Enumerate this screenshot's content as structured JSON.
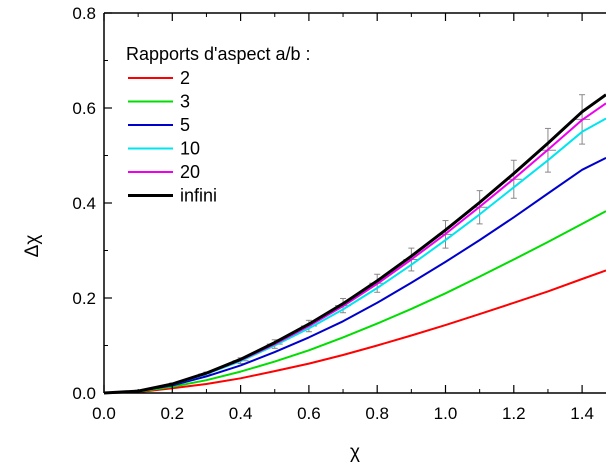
{
  "chart_data": {
    "type": "line",
    "title": "",
    "xlabel": "χ",
    "ylabel": "Δχ",
    "xlim": [
      0,
      1.47
    ],
    "ylim": [
      0,
      0.8
    ],
    "xticks": [
      "0.0",
      "0.2",
      "0.4",
      "0.6",
      "0.8",
      "1.0",
      "1.2",
      "1.4"
    ],
    "yticks": [
      "0.0",
      "0.2",
      "0.4",
      "0.6",
      "0.8"
    ],
    "grid": false,
    "legend": {
      "title": "Rapports d'aspect a/b :",
      "placement": "top-left"
    },
    "series": [
      {
        "name": "2",
        "color": "#ff0000",
        "x": [
          0,
          0.1,
          0.2,
          0.3,
          0.4,
          0.5,
          0.6,
          0.7,
          0.8,
          0.9,
          1.0,
          1.1,
          1.2,
          1.3,
          1.4,
          1.47
        ],
        "values": [
          0,
          0.002,
          0.01,
          0.019,
          0.031,
          0.046,
          0.062,
          0.08,
          0.1,
          0.121,
          0.143,
          0.166,
          0.19,
          0.214,
          0.24,
          0.258
        ]
      },
      {
        "name": "3",
        "color": "#00dd00",
        "x": [
          0,
          0.1,
          0.2,
          0.3,
          0.4,
          0.5,
          0.6,
          0.7,
          0.8,
          0.9,
          1.0,
          1.1,
          1.2,
          1.3,
          1.4,
          1.47
        ],
        "values": [
          0,
          0.003,
          0.013,
          0.027,
          0.045,
          0.066,
          0.09,
          0.117,
          0.146,
          0.177,
          0.21,
          0.245,
          0.281,
          0.318,
          0.356,
          0.383
        ]
      },
      {
        "name": "5",
        "color": "#0000cc",
        "x": [
          0,
          0.1,
          0.2,
          0.3,
          0.4,
          0.5,
          0.6,
          0.7,
          0.8,
          0.9,
          1.0,
          1.1,
          1.2,
          1.3,
          1.4,
          1.47
        ],
        "values": [
          0,
          0.004,
          0.016,
          0.035,
          0.058,
          0.086,
          0.117,
          0.151,
          0.19,
          0.232,
          0.276,
          0.322,
          0.37,
          0.42,
          0.47,
          0.495
        ]
      },
      {
        "name": "10",
        "color": "#00e5ee",
        "x": [
          0,
          0.1,
          0.2,
          0.3,
          0.4,
          0.5,
          0.6,
          0.7,
          0.8,
          0.9,
          1.0,
          1.1,
          1.2,
          1.3,
          1.4,
          1.47
        ],
        "values": [
          0,
          0.004,
          0.018,
          0.04,
          0.067,
          0.1,
          0.136,
          0.176,
          0.221,
          0.27,
          0.322,
          0.376,
          0.433,
          0.49,
          0.55,
          0.578
        ]
      },
      {
        "name": "20",
        "color": "#ee00ee",
        "x": [
          0,
          0.1,
          0.2,
          0.3,
          0.4,
          0.5,
          0.6,
          0.7,
          0.8,
          0.9,
          1.0,
          1.1,
          1.2,
          1.3,
          1.4,
          1.47
        ],
        "values": [
          0,
          0.004,
          0.019,
          0.041,
          0.069,
          0.103,
          0.141,
          0.183,
          0.23,
          0.281,
          0.335,
          0.392,
          0.451,
          0.512,
          0.575,
          0.61
        ]
      },
      {
        "name": "infini",
        "color": "#000000",
        "x": [
          0,
          0.1,
          0.2,
          0.3,
          0.4,
          0.5,
          0.6,
          0.7,
          0.8,
          0.9,
          1.0,
          1.1,
          1.2,
          1.3,
          1.4,
          1.47
        ],
        "values": [
          0,
          0.004,
          0.019,
          0.042,
          0.071,
          0.106,
          0.145,
          0.188,
          0.236,
          0.288,
          0.343,
          0.401,
          0.462,
          0.526,
          0.592,
          0.628
        ]
      }
    ],
    "error_points": [
      {
        "x": 0.1,
        "y": 0.004,
        "err": 0.002
      },
      {
        "x": 0.2,
        "y": 0.018,
        "err": 0.003
      },
      {
        "x": 0.3,
        "y": 0.04,
        "err": 0.004
      },
      {
        "x": 0.4,
        "y": 0.068,
        "err": 0.006
      },
      {
        "x": 0.5,
        "y": 0.103,
        "err": 0.009
      },
      {
        "x": 0.6,
        "y": 0.141,
        "err": 0.012
      },
      {
        "x": 0.7,
        "y": 0.184,
        "err": 0.015
      },
      {
        "x": 0.8,
        "y": 0.231,
        "err": 0.019
      },
      {
        "x": 0.9,
        "y": 0.281,
        "err": 0.024
      },
      {
        "x": 1.0,
        "y": 0.334,
        "err": 0.029
      },
      {
        "x": 1.1,
        "y": 0.391,
        "err": 0.035
      },
      {
        "x": 1.2,
        "y": 0.45,
        "err": 0.04
      },
      {
        "x": 1.3,
        "y": 0.511,
        "err": 0.046
      },
      {
        "x": 1.4,
        "y": 0.576,
        "err": 0.052
      }
    ]
  }
}
